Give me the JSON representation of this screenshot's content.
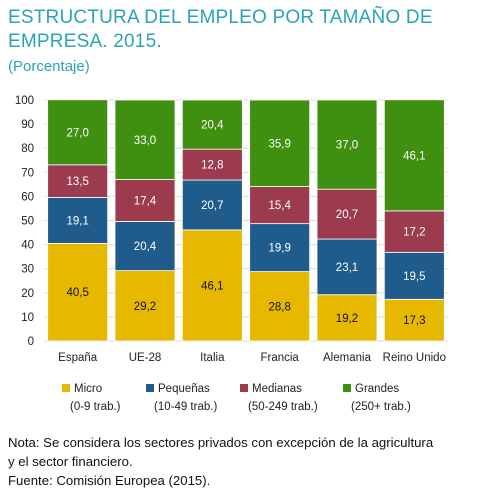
{
  "title": "ESTRUCTURA DEL EMPLEO POR TAMAÑO DE EMPRESA. 2015.",
  "subtitle": "(Porcentaje)",
  "chart_data": {
    "type": "bar",
    "stacked": true,
    "categories": [
      "España",
      "UE-28",
      "Italia",
      "Francia",
      "Alemania",
      "Reino Unido"
    ],
    "series": [
      {
        "name": "Micro",
        "sublabel": "(0-9 trab.)",
        "color": "#e6b800",
        "values": [
          40.5,
          29.2,
          46.1,
          28.8,
          19.2,
          17.3
        ]
      },
      {
        "name": "Pequeñas",
        "sublabel": "(10-49 trab.)",
        "color": "#1f5c8c",
        "values": [
          19.1,
          20.4,
          20.7,
          19.9,
          23.1,
          19.5
        ]
      },
      {
        "name": "Medianas",
        "sublabel": "(50-249 trab.)",
        "color": "#9b3b4d",
        "values": [
          13.5,
          17.4,
          12.8,
          15.4,
          20.7,
          17.2
        ]
      },
      {
        "name": "Grandes",
        "sublabel": "(250+ trab.)",
        "color": "#3f8f11",
        "values": [
          27.0,
          33.0,
          20.4,
          35.9,
          37.0,
          46.1
        ]
      }
    ],
    "value_labels": [
      [
        "40,5",
        "29,2",
        "46,1",
        "28,8",
        "19,2",
        "17,3"
      ],
      [
        "19,1",
        "20,4",
        "20,7",
        "19,9",
        "23,1",
        "19,5"
      ],
      [
        "13,5",
        "17,4",
        "12,8",
        "15,4",
        "20,7",
        "17,2"
      ],
      [
        "27,0",
        "33,0",
        "20,4",
        "35,9",
        "37,0",
        "46,1"
      ]
    ],
    "ylim": [
      0,
      100
    ],
    "yticks": [
      0,
      10,
      20,
      30,
      40,
      50,
      60,
      70,
      80,
      90,
      100
    ],
    "grid": true,
    "legend_position": "bottom"
  },
  "notes": {
    "line1": "Nota: Se considera los sectores privados con excepción de la agricultura",
    "line2": "y el sector financiero.",
    "line3": "Fuente: Comisión Europea (2015)."
  }
}
